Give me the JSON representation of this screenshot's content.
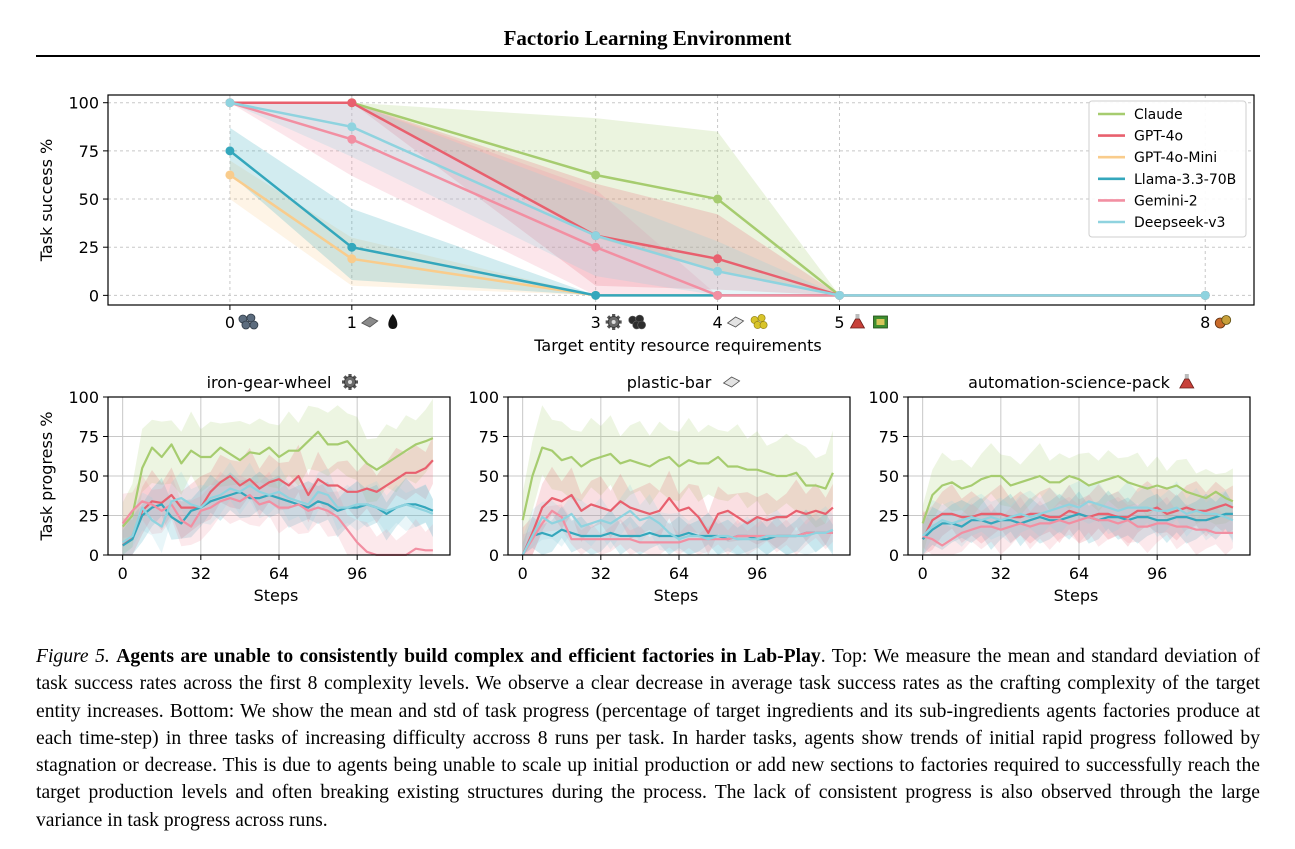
{
  "header": {
    "running_title": "Factorio Learning Environment"
  },
  "figure": {
    "caption_label": "Figure 5.",
    "caption_title": "Agents are unable to consistently build complex and efficient factories in Lab-Play",
    "caption_body": ". Top: We measure the mean and standard deviation of task success rates across the first 8 complexity levels. We observe a clear decrease in average task success rates as the crafting complexity of the target entity increases. Bottom: We show the mean and std of task progress (percentage of target ingredients and its sub-ingredients agents factories produce at each time-step) in three tasks of increasing difficulty accross 8 runs per task. In harder tasks, agents show trends of initial rapid progress followed by stagnation or decrease. This is due to agents being unable to scale up initial production or add new sections to factories required to successfully reach the target production levels and often breaking existing structures during the process. The lack of consistent progress is also observed through the large variance in task progress across runs."
  },
  "chart_data": [
    {
      "type": "line",
      "xlabel": "Target entity resource requirements",
      "ylabel": "Task success %",
      "xlim": [
        -1,
        8.4
      ],
      "ylim": [
        -5,
        104
      ],
      "yticks": [
        0,
        25,
        50,
        75,
        100
      ],
      "xticks": [
        {
          "value": 0,
          "label": "0",
          "icons": [
            "iron-ore-icon"
          ]
        },
        {
          "value": 1,
          "label": "1",
          "icons": [
            "stone-icon",
            "crude-oil-icon"
          ]
        },
        {
          "value": 3,
          "label": "3",
          "icons": [
            "gear-icon",
            "coal-icon"
          ]
        },
        {
          "value": 4,
          "label": "4",
          "icons": [
            "plastic-bar-icon",
            "sulfur-icon"
          ]
        },
        {
          "value": 5,
          "label": "5",
          "icons": [
            "science-pack-icon",
            "circuit-icon"
          ]
        },
        {
          "value": 8,
          "label": "8",
          "icons": [
            "utility-pack-icon"
          ]
        }
      ],
      "grid": true,
      "legend_position": "top-right",
      "x": [
        0,
        1,
        3,
        4,
        5,
        8
      ],
      "series": [
        {
          "name": "Claude",
          "color": "#a6cc6f",
          "values": [
            100,
            100,
            62.5,
            50,
            0,
            0
          ],
          "band_low": [
            100,
            100,
            30,
            12,
            0,
            0
          ],
          "band_high": [
            100,
            100,
            92,
            85,
            0,
            0
          ]
        },
        {
          "name": "GPT-4o",
          "color": "#e8606e",
          "values": [
            100,
            100,
            31,
            19,
            0,
            0
          ],
          "band_low": [
            100,
            100,
            5,
            3,
            0,
            0
          ],
          "band_high": [
            100,
            100,
            58,
            42,
            0,
            0
          ]
        },
        {
          "name": "GPT-4o-Mini",
          "color": "#f9cc8c",
          "values": [
            62.5,
            19,
            0,
            0,
            0,
            0
          ],
          "band_low": [
            50,
            5,
            0,
            0,
            0,
            0
          ],
          "band_high": [
            70,
            30,
            0,
            0,
            0,
            0
          ]
        },
        {
          "name": "Llama-3.3-70B",
          "color": "#34a7bc",
          "values": [
            75,
            25,
            0,
            0,
            0,
            0
          ],
          "band_low": [
            63,
            8,
            0,
            0,
            0,
            0
          ],
          "band_high": [
            87,
            45,
            0,
            0,
            0,
            0
          ]
        },
        {
          "name": "Gemini-2",
          "color": "#f28fa2",
          "values": [
            100,
            81,
            25,
            0,
            0,
            0
          ],
          "band_low": [
            100,
            62,
            0,
            0,
            0,
            0
          ],
          "band_high": [
            100,
            100,
            55,
            0,
            0,
            0
          ]
        },
        {
          "name": "Deepseek-v3",
          "color": "#8fd3df",
          "values": [
            100,
            87.5,
            31,
            12.5,
            0,
            0
          ],
          "band_low": [
            100,
            72,
            10,
            0,
            0,
            0
          ],
          "band_high": [
            100,
            100,
            52,
            28,
            0,
            0
          ]
        }
      ]
    },
    {
      "type": "line",
      "title": "iron-gear-wheel",
      "title_icon": "gear-icon",
      "xlabel": "Steps",
      "ylabel": "Task progress %",
      "xlim": [
        -6,
        134
      ],
      "ylim": [
        0,
        100
      ],
      "xticks": [
        0,
        32,
        64,
        96
      ],
      "yticks": [
        0,
        25,
        50,
        75,
        100
      ],
      "grid": true,
      "x": [
        0,
        4,
        8,
        12,
        16,
        20,
        24,
        28,
        32,
        36,
        40,
        44,
        48,
        52,
        56,
        60,
        64,
        68,
        72,
        76,
        80,
        84,
        88,
        92,
        96,
        100,
        104,
        108,
        112,
        116,
        120,
        124,
        127
      ],
      "series": [
        {
          "name": "Claude",
          "color": "#a6cc6f",
          "values": [
            18,
            25,
            55,
            68,
            62,
            70,
            58,
            66,
            62,
            62,
            68,
            64,
            60,
            65,
            64,
            68,
            62,
            66,
            66,
            72,
            78,
            70,
            70,
            72,
            65,
            58,
            54,
            58,
            62,
            66,
            70,
            72,
            74
          ],
          "spread": 20
        },
        {
          "name": "GPT-4o",
          "color": "#e8606e",
          "values": [
            6,
            12,
            28,
            34,
            33,
            38,
            30,
            30,
            30,
            40,
            46,
            50,
            44,
            48,
            42,
            46,
            48,
            44,
            50,
            38,
            48,
            44,
            44,
            40,
            40,
            42,
            40,
            44,
            48,
            52,
            52,
            55,
            60
          ],
          "spread": 15
        },
        {
          "name": "Llama-3.3-70B",
          "color": "#34a7bc",
          "values": [
            6,
            10,
            25,
            30,
            32,
            24,
            20,
            28,
            30,
            34,
            36,
            38,
            40,
            36,
            36,
            38,
            36,
            34,
            32,
            30,
            34,
            32,
            28,
            30,
            30,
            32,
            30,
            26,
            30,
            32,
            32,
            30,
            28
          ],
          "spread": 12
        },
        {
          "name": "Gemini-2",
          "color": "#f28fa2",
          "values": [
            20,
            28,
            34,
            32,
            28,
            32,
            22,
            18,
            28,
            30,
            34,
            36,
            34,
            38,
            32,
            34,
            30,
            30,
            32,
            28,
            30,
            28,
            24,
            16,
            8,
            2,
            0,
            0,
            0,
            0,
            4,
            3,
            3
          ],
          "spread": 14
        },
        {
          "name": "Deepseek-v3",
          "color": "#8fd3df",
          "values": [
            8,
            12,
            30,
            22,
            18,
            34,
            36,
            32,
            30,
            36,
            38,
            42,
            40,
            44,
            40,
            38,
            40,
            36,
            34,
            32,
            40,
            38,
            30,
            30,
            32,
            32,
            30,
            28,
            30,
            32,
            30,
            28,
            26
          ],
          "spread": 12
        }
      ]
    },
    {
      "type": "line",
      "title": "plastic-bar",
      "title_icon": "plastic-bar-icon",
      "xlabel": "Steps",
      "xlim": [
        -6,
        134
      ],
      "ylim": [
        0,
        100
      ],
      "xticks": [
        0,
        32,
        64,
        96
      ],
      "yticks": [
        0,
        25,
        50,
        75,
        100
      ],
      "grid": true,
      "x": [
        0,
        4,
        8,
        12,
        16,
        20,
        24,
        28,
        32,
        36,
        40,
        44,
        48,
        52,
        56,
        60,
        64,
        68,
        72,
        76,
        80,
        84,
        88,
        92,
        96,
        100,
        104,
        108,
        112,
        116,
        120,
        124,
        127
      ],
      "series": [
        {
          "name": "Claude",
          "color": "#a6cc6f",
          "values": [
            22,
            50,
            68,
            66,
            60,
            62,
            56,
            60,
            62,
            64,
            58,
            60,
            58,
            56,
            60,
            62,
            56,
            60,
            58,
            58,
            62,
            56,
            56,
            54,
            54,
            52,
            50,
            50,
            52,
            44,
            44,
            42,
            52
          ],
          "spread": 22
        },
        {
          "name": "GPT-4o",
          "color": "#e8606e",
          "values": [
            0,
            14,
            30,
            36,
            34,
            38,
            28,
            32,
            30,
            28,
            34,
            30,
            28,
            26,
            28,
            36,
            28,
            30,
            24,
            14,
            26,
            28,
            24,
            20,
            24,
            22,
            24,
            24,
            28,
            26,
            28,
            26,
            30
          ],
          "spread": 15
        },
        {
          "name": "Llama-3.3-70B",
          "color": "#34a7bc",
          "values": [
            0,
            12,
            14,
            12,
            16,
            14,
            12,
            12,
            12,
            14,
            12,
            12,
            12,
            14,
            12,
            12,
            12,
            14,
            12,
            12,
            12,
            10,
            12,
            12,
            10,
            10,
            12,
            12,
            12,
            14,
            14,
            14,
            14
          ],
          "spread": 10
        },
        {
          "name": "Gemini-2",
          "color": "#f28fa2",
          "values": [
            0,
            10,
            20,
            28,
            24,
            10,
            10,
            10,
            10,
            10,
            10,
            10,
            8,
            8,
            8,
            8,
            8,
            10,
            10,
            10,
            10,
            10,
            12,
            12,
            12,
            12,
            12,
            12,
            12,
            14,
            14,
            14,
            14
          ],
          "spread": 8
        },
        {
          "name": "Deepseek-v3",
          "color": "#8fd3df",
          "values": [
            0,
            12,
            24,
            20,
            22,
            26,
            18,
            20,
            22,
            20,
            24,
            28,
            22,
            24,
            20,
            14,
            10,
            12,
            12,
            10,
            12,
            12,
            10,
            10,
            10,
            12,
            12,
            12,
            12,
            12,
            14,
            14,
            16
          ],
          "spread": 12
        }
      ]
    },
    {
      "type": "line",
      "title": "automation-science-pack",
      "title_icon": "science-pack-icon",
      "xlabel": "Steps",
      "xlim": [
        -6,
        134
      ],
      "ylim": [
        0,
        100
      ],
      "xticks": [
        0,
        32,
        64,
        96
      ],
      "yticks": [
        0,
        25,
        50,
        75,
        100
      ],
      "grid": true,
      "x": [
        0,
        4,
        8,
        12,
        16,
        20,
        24,
        28,
        32,
        36,
        40,
        44,
        48,
        52,
        56,
        60,
        64,
        68,
        72,
        76,
        80,
        84,
        88,
        92,
        96,
        100,
        104,
        108,
        112,
        116,
        120,
        124,
        127
      ],
      "series": [
        {
          "name": "Claude",
          "color": "#a6cc6f",
          "values": [
            20,
            38,
            44,
            46,
            42,
            44,
            48,
            50,
            50,
            44,
            46,
            48,
            50,
            46,
            46,
            50,
            48,
            44,
            46,
            48,
            50,
            46,
            44,
            42,
            44,
            42,
            44,
            40,
            38,
            36,
            40,
            36,
            34
          ],
          "spread": 16
        },
        {
          "name": "GPT-4o",
          "color": "#e8606e",
          "values": [
            10,
            22,
            26,
            26,
            24,
            24,
            26,
            26,
            26,
            24,
            24,
            26,
            26,
            24,
            24,
            28,
            26,
            24,
            26,
            26,
            24,
            24,
            28,
            28,
            30,
            26,
            28,
            30,
            28,
            28,
            30,
            32,
            30
          ],
          "spread": 14
        },
        {
          "name": "Llama-3.3-70B",
          "color": "#34a7bc",
          "values": [
            10,
            16,
            20,
            20,
            18,
            22,
            22,
            20,
            22,
            22,
            20,
            22,
            24,
            22,
            22,
            24,
            26,
            24,
            22,
            24,
            24,
            22,
            24,
            24,
            22,
            22,
            24,
            24,
            22,
            22,
            24,
            26,
            26
          ],
          "spread": 12
        },
        {
          "name": "Gemini-2",
          "color": "#f28fa2",
          "values": [
            12,
            10,
            6,
            10,
            14,
            16,
            18,
            18,
            16,
            18,
            20,
            18,
            20,
            20,
            22,
            20,
            22,
            24,
            22,
            22,
            20,
            22,
            18,
            18,
            20,
            20,
            18,
            18,
            16,
            16,
            14,
            14,
            14
          ],
          "spread": 12
        },
        {
          "name": "Deepseek-v3",
          "color": "#8fd3df",
          "values": [
            12,
            18,
            22,
            20,
            22,
            24,
            22,
            24,
            22,
            24,
            26,
            24,
            26,
            28,
            30,
            32,
            30,
            34,
            32,
            30,
            28,
            30,
            30,
            30,
            28,
            28,
            30,
            26,
            28,
            26,
            26,
            24,
            22
          ],
          "spread": 12
        }
      ]
    }
  ]
}
